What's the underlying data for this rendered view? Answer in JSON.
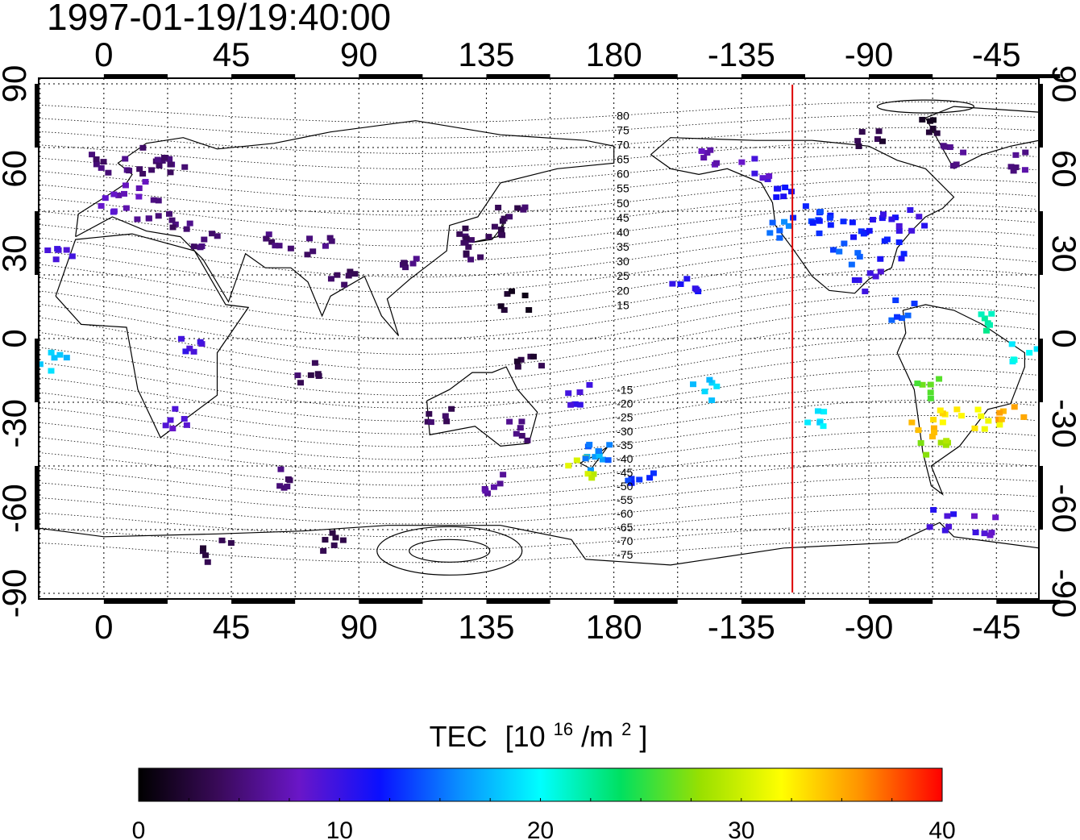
{
  "timestamp": "1997-01-19/19:40:00",
  "map": {
    "lon_ticks": [
      {
        "lon": 0,
        "label": "0"
      },
      {
        "lon": 45,
        "label": "45"
      },
      {
        "lon": 90,
        "label": "90"
      },
      {
        "lon": 135,
        "label": "135"
      },
      {
        "lon": 180,
        "label": "180"
      },
      {
        "lon": 225,
        "label": "-135"
      },
      {
        "lon": 270,
        "label": "-90"
      },
      {
        "lon": 315,
        "label": "-45"
      }
    ],
    "lat_ticks": [
      {
        "lat": 90,
        "label": "90"
      },
      {
        "lat": 60,
        "label": "60"
      },
      {
        "lat": 30,
        "label": "30"
      },
      {
        "lat": 0,
        "label": "0"
      },
      {
        "lat": -30,
        "label": "-30"
      },
      {
        "lat": -60,
        "label": "-60"
      },
      {
        "lat": -90,
        "label": "-90"
      }
    ],
    "lon_range_deg": [
      -23,
      330
    ],
    "lat_range_deg": [
      -92,
      92
    ],
    "grid_spacing_deg": 22.5,
    "grid": true,
    "subsolar_meridian_lon": 243,
    "subsolar_meridian_color": "#dd0000",
    "magnetic_latitude_labels": [
      "80",
      "75",
      "70",
      "65",
      "60",
      "55",
      "50",
      "45",
      "40",
      "35",
      "30",
      "25",
      "20",
      "15",
      "-15",
      "-20",
      "-25",
      "-30",
      "-35",
      "-40",
      "-45",
      "-50",
      "-55",
      "-60",
      "-65",
      "-70",
      "-75"
    ]
  },
  "colorbar": {
    "title": "TEC",
    "unit_base": "[10",
    "unit_exp": "16",
    "unit_mid": "/m",
    "unit_exp2": "2",
    "unit_end": "]",
    "min": 0,
    "max": 40,
    "tick_labels": [
      "0",
      "10",
      "20",
      "30",
      "40"
    ],
    "colormap": [
      "#000000",
      "#3a0a5a",
      "#6a16c8",
      "#0a10ff",
      "#0a90ff",
      "#00ffff",
      "#00e060",
      "#9ae000",
      "#ffff00",
      "#ff9000",
      "#ff0000"
    ]
  },
  "observations": [
    {
      "lon": 0,
      "lat": 62,
      "tec": 5
    },
    {
      "lon": 12,
      "lat": 60,
      "tec": 5
    },
    {
      "lon": 18,
      "lat": 64,
      "tec": 5
    },
    {
      "lon": 24,
      "lat": 62,
      "tec": 5
    },
    {
      "lon": 10,
      "lat": 52,
      "tec": 7
    },
    {
      "lon": 4,
      "lat": 48,
      "tec": 8
    },
    {
      "lon": 16,
      "lat": 46,
      "tec": 6
    },
    {
      "lon": 28,
      "lat": 42,
      "tec": 5
    },
    {
      "lon": 36,
      "lat": 36,
      "tec": 5
    },
    {
      "lon": -16,
      "lat": 28,
      "tec": 9
    },
    {
      "lon": -18,
      "lat": -8,
      "tec": 18
    },
    {
      "lon": 30,
      "lat": -2,
      "tec": 10
    },
    {
      "lon": 26,
      "lat": -28,
      "tec": 9
    },
    {
      "lon": 62,
      "lat": 35,
      "tec": 5
    },
    {
      "lon": 76,
      "lat": 32,
      "tec": 5
    },
    {
      "lon": 84,
      "lat": 22,
      "tec": 4
    },
    {
      "lon": 72,
      "lat": -12,
      "tec": 4
    },
    {
      "lon": 64,
      "lat": -50,
      "tec": 5
    },
    {
      "lon": 40,
      "lat": -75,
      "tec": 3
    },
    {
      "lon": 80,
      "lat": -72,
      "tec": 4
    },
    {
      "lon": 110,
      "lat": 28,
      "tec": 5
    },
    {
      "lon": 128,
      "lat": 36,
      "tec": 4
    },
    {
      "lon": 138,
      "lat": 40,
      "tec": 4
    },
    {
      "lon": 144,
      "lat": 44,
      "tec": 4
    },
    {
      "lon": 132,
      "lat": 30,
      "tec": 4
    },
    {
      "lon": 145,
      "lat": 14,
      "tec": 2
    },
    {
      "lon": 150,
      "lat": -8,
      "tec": 3
    },
    {
      "lon": 118,
      "lat": -28,
      "tec": 4
    },
    {
      "lon": 145,
      "lat": -32,
      "tec": 5
    },
    {
      "lon": 138,
      "lat": -52,
      "tec": 7
    },
    {
      "lon": 168,
      "lat": -20,
      "tec": 10
    },
    {
      "lon": 172,
      "lat": -43,
      "tec": 17
    },
    {
      "lon": 168,
      "lat": -46,
      "tec": 30
    },
    {
      "lon": 175,
      "lat": -40,
      "tec": 15
    },
    {
      "lon": 190,
      "lat": -48,
      "tec": 13
    },
    {
      "lon": 205,
      "lat": 20,
      "tec": 11
    },
    {
      "lon": 212,
      "lat": -18,
      "tec": 18
    },
    {
      "lon": 252,
      "lat": -28,
      "tec": 19
    },
    {
      "lon": 215,
      "lat": 64,
      "tec": 7
    },
    {
      "lon": 230,
      "lat": 60,
      "tec": 9
    },
    {
      "lon": 240,
      "lat": 52,
      "tec": 12
    },
    {
      "lon": 248,
      "lat": 45,
      "tec": 13
    },
    {
      "lon": 240,
      "lat": 38,
      "tec": 15
    },
    {
      "lon": 255,
      "lat": 40,
      "tec": 13
    },
    {
      "lon": 265,
      "lat": 38,
      "tec": 12
    },
    {
      "lon": 275,
      "lat": 40,
      "tec": 11
    },
    {
      "lon": 285,
      "lat": 42,
      "tec": 10
    },
    {
      "lon": 262,
      "lat": 30,
      "tec": 14
    },
    {
      "lon": 278,
      "lat": 32,
      "tec": 12
    },
    {
      "lon": 270,
      "lat": 20,
      "tec": 10
    },
    {
      "lon": 282,
      "lat": 10,
      "tec": 14
    },
    {
      "lon": 270,
      "lat": 70,
      "tec": 3
    },
    {
      "lon": 290,
      "lat": 75,
      "tec": 2
    },
    {
      "lon": 300,
      "lat": 65,
      "tec": 6
    },
    {
      "lon": 325,
      "lat": 62,
      "tec": 6
    },
    {
      "lon": 310,
      "lat": 5,
      "tec": 22
    },
    {
      "lon": 325,
      "lat": -5,
      "tec": 20
    },
    {
      "lon": 292,
      "lat": -18,
      "tec": 26
    },
    {
      "lon": 290,
      "lat": -32,
      "tec": 34
    },
    {
      "lon": 293,
      "lat": -38,
      "tec": 28
    },
    {
      "lon": 300,
      "lat": -28,
      "tec": 33
    },
    {
      "lon": 312,
      "lat": -28,
      "tec": 32
    },
    {
      "lon": 320,
      "lat": -25,
      "tec": 35
    },
    {
      "lon": 295,
      "lat": -64,
      "tec": 10
    },
    {
      "lon": 310,
      "lat": -66,
      "tec": 9
    }
  ]
}
